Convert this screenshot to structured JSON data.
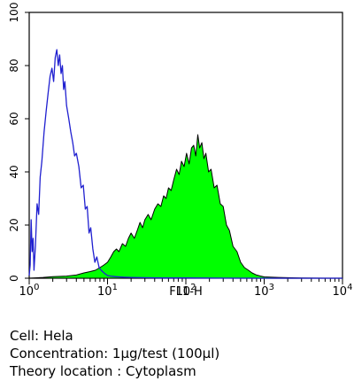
{
  "chart_data": {
    "type": "area",
    "xlabel": "FL1-H",
    "ylabel": "",
    "x_scale": "log",
    "xlim": [
      1,
      10000
    ],
    "ylim": [
      0,
      100
    ],
    "grid": false,
    "x_ticks": [
      {
        "value": 1,
        "base": "10",
        "exp": "0"
      },
      {
        "value": 10,
        "base": "10",
        "exp": "1"
      },
      {
        "value": 100,
        "base": "10",
        "exp": "2"
      },
      {
        "value": 1000,
        "base": "10",
        "exp": "3"
      },
      {
        "value": 10000,
        "base": "10",
        "exp": "4"
      }
    ],
    "y_ticks": [
      0,
      20,
      40,
      60,
      80,
      100
    ],
    "series": [
      {
        "style": "outline",
        "color": "#2020d0",
        "x": [
          1.0,
          1.03,
          1.06,
          1.09,
          1.12,
          1.15,
          1.2,
          1.26,
          1.32,
          1.38,
          1.45,
          1.55,
          1.65,
          1.75,
          1.85,
          1.95,
          2.05,
          2.15,
          2.25,
          2.35,
          2.45,
          2.55,
          2.65,
          2.75,
          2.85,
          3.0,
          3.2,
          3.4,
          3.6,
          3.8,
          4.0,
          4.3,
          4.6,
          4.9,
          5.2,
          5.5,
          5.8,
          6.1,
          6.5,
          6.9,
          7.3,
          7.8,
          8.3,
          9.0,
          10.0,
          11.0,
          12.5,
          14.0,
          16.0,
          20.0,
          30.0,
          50.0,
          100.0,
          1000.0,
          10000.0
        ],
        "y": [
          1,
          5,
          22,
          10,
          15,
          3,
          12,
          28,
          24,
          38,
          44,
          55,
          63,
          70,
          76,
          79,
          74,
          83,
          86,
          80,
          84,
          77,
          80,
          71,
          74,
          65,
          60,
          55,
          51,
          46,
          47,
          42,
          34,
          35,
          26,
          27,
          17,
          19,
          11,
          6,
          8,
          4,
          3,
          2,
          1,
          0.8,
          0.6,
          0.5,
          0.4,
          0.3,
          0.2,
          0.1,
          0.1,
          0,
          0
        ]
      },
      {
        "style": "filled",
        "color": "#00ff00",
        "x": [
          1.0,
          1.5,
          2.0,
          3.0,
          4.0,
          5.0,
          6.0,
          7.0,
          8.0,
          9.0,
          10.0,
          11.0,
          12.0,
          13.0,
          14.0,
          15.5,
          17.0,
          18.5,
          20.0,
          22.0,
          24.0,
          26.0,
          28.0,
          30.0,
          33.0,
          36.0,
          40.0,
          44.0,
          48.0,
          52.0,
          56.0,
          60.0,
          65.0,
          70.0,
          76.0,
          82.0,
          88.0,
          95.0,
          102.0,
          110.0,
          118.0,
          126.0,
          134.0,
          142.0,
          150.0,
          160.0,
          170.0,
          180.0,
          195.0,
          210.0,
          230.0,
          250.0,
          275.0,
          300.0,
          330.0,
          360.0,
          400.0,
          450.0,
          500.0,
          560.0,
          630.0,
          700.0,
          800.0,
          900.0,
          1000.0,
          1500.0,
          3000.0,
          6000.0,
          10000.0
        ],
        "y": [
          0,
          0.3,
          0.6,
          0.8,
          1.2,
          2,
          2.5,
          3,
          4,
          5,
          6,
          8,
          10,
          11,
          10,
          13,
          12,
          15,
          17,
          15,
          18,
          21,
          19,
          22,
          24,
          22,
          26,
          28,
          27,
          31,
          30,
          34,
          33,
          37,
          41,
          39,
          44,
          42,
          47,
          43,
          49,
          50,
          46,
          54,
          49,
          51,
          45,
          47,
          40,
          41,
          34,
          35,
          28,
          27,
          20,
          18,
          12,
          10,
          6,
          4,
          3,
          2,
          1.2,
          0.8,
          0.5,
          0.3,
          0.1,
          0,
          0
        ]
      }
    ]
  },
  "captions": [
    "Cell: Hela",
    "Concentration: 1μg/test (100μl)",
    "Theory location : Cytoplasm"
  ]
}
